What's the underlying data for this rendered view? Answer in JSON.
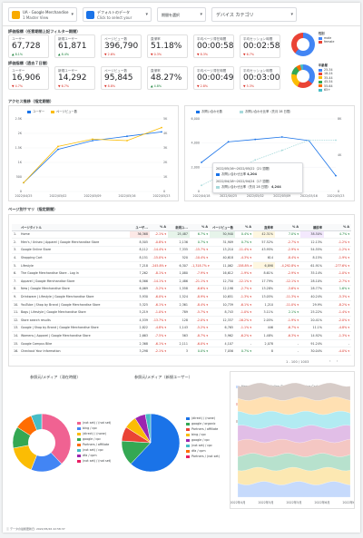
{
  "controls": {
    "account": {
      "line1": "UA - Google Merchandise",
      "line2": "1 Master View"
    },
    "dates": {
      "line1": "デフォルトのデータ",
      "line2": "Click to select your"
    },
    "compare": {
      "label": "期間を選択"
    },
    "device": {
      "label": "デバイス カテゴリ"
    }
  },
  "section1": {
    "title": "評価指標（任意期間上記フィルター期間）"
  },
  "section2": {
    "title": "評価指標（過去７日間）"
  },
  "kpi_row1": [
    {
      "label": "ユーザー",
      "value": "67,728",
      "delta": "▲ 8.1%",
      "up": true
    },
    {
      "label": "新規ユーザー",
      "value": "61,871",
      "delta": "▲ 8.4%",
      "up": true
    },
    {
      "label": "ページビュー数",
      "value": "396,790",
      "delta": "▼ 2.6%",
      "up": false
    },
    {
      "label": "直帰率",
      "value": "51.18%",
      "delta": "▼ 0.3%",
      "up": false
    },
    {
      "label": "平均ページ滞在時間",
      "value": "00:00:58",
      "delta": "▼ 8.3%",
      "up": false
    },
    {
      "label": "平均セッション時間",
      "value": "00:02:58",
      "delta": "▼ 6.7%",
      "up": false
    }
  ],
  "kpi_row2": [
    {
      "label": "ユーザー",
      "value": "16,906",
      "delta": "▼ 4.7%",
      "up": false
    },
    {
      "label": "新規ユーザー",
      "value": "14,292",
      "delta": "▼ 6.7%",
      "up": false
    },
    {
      "label": "ページビュー数",
      "value": "95,845",
      "delta": "▼ 8.8%",
      "up": false
    },
    {
      "label": "直帰率",
      "value": "48.27%",
      "delta": "▲ 4.8%",
      "up": true
    },
    {
      "label": "平均ページ滞在時間",
      "value": "00:00:49",
      "delta": "▼ 2.8%",
      "up": false
    },
    {
      "label": "平均セッション時間",
      "value": "00:03:00",
      "delta": "▼ 5.3%",
      "up": false
    }
  ],
  "donut1": {
    "title": "性別",
    "items": [
      {
        "label": "male",
        "color": "#4285f4"
      },
      {
        "label": "female",
        "color": "#ea4335"
      }
    ]
  },
  "donut2": {
    "title": "年齢層",
    "items": [
      {
        "label": "25-34",
        "color": "#4285f4"
      },
      {
        "label": "18-24",
        "color": "#ea4335"
      },
      {
        "label": "35-44",
        "color": "#fbbc04"
      },
      {
        "label": "45-54",
        "color": "#34a853"
      },
      {
        "label": "55-64",
        "color": "#ff6d01"
      },
      {
        "label": "65+",
        "color": "#46bdc6"
      }
    ]
  },
  "section3": {
    "title": "アクセス推移（指定期間）"
  },
  "section4": {
    "title": "ページ別サマリ（指定期間）"
  },
  "line_chart1": {
    "legend": [
      "ユーザー",
      "ページビュー数"
    ],
    "x": [
      "2022/04/25",
      "2022/05/02",
      "2022/05/09",
      "2022/05/16",
      "2022/05/23"
    ],
    "y_left": [
      "0",
      "500",
      "1K",
      "1.5K",
      "2K",
      "2.5K"
    ],
    "y_right": [
      "0",
      "1K",
      "2K",
      "3K",
      "4K",
      "5K"
    ],
    "series1": [
      300,
      1450,
      1750,
      1900,
      2050
    ],
    "series2": [
      300,
      1550,
      1800,
      1750,
      2200
    ]
  },
  "line_chart2": {
    "legend": [
      "お問い合わせ数",
      "お問い合わせ比率（先月 28 日間）"
    ],
    "x": [
      "2022/04/18",
      "2022/04/25",
      "2022/05/02",
      "2022/05/09",
      "2022/05/16",
      "2022/05/23"
    ],
    "y_left": [
      "0",
      "2,000",
      "4,000",
      "6,000"
    ],
    "y_right": [
      "0",
      "4K",
      "8K"
    ],
    "tip_head1": "2022/05/16〜2022/05/22（21 週間）",
    "tip_row1": {
      "label": "お問い合わせ比率",
      "value": "4,204"
    },
    "tip_head2": "2022/04/18〜2022/04/24（17 週間）",
    "tip_row2": {
      "label": "お問い合わせ比率（先月 28 日間）",
      "value": "4,244"
    }
  },
  "table": {
    "headers": [
      "ページタイトル",
      "ユーザ...",
      "% Δ",
      "新規ユ...",
      "% Δ",
      "ページビュー数",
      "% Δ",
      "直帰率",
      "% Δ",
      "離脱率",
      "% Δ"
    ],
    "rows": [
      [
        "1.",
        "Home",
        "36,368",
        "-2.1% ▾",
        "25,487",
        "6.7% ▾",
        "50,940",
        "0.4% ▾",
        "42.31%",
        "7.0% ▾",
        "38.50%",
        "4.7% ▾"
      ],
      [
        "2.",
        "Men's / Unisex | Apparel | Google Merchandise Store",
        "8,505",
        "-0.8% ▾",
        "2,136",
        "0.7% ▾",
        "31,909",
        "0.7% ▾",
        "57.52%",
        "-2.7% ▾",
        "12.13%",
        "-1.2% ▾"
      ],
      [
        "3.",
        "Google Online Store",
        "8,112",
        "-14.4% ▾",
        "7,335",
        "-15.7% ▾",
        "13,210",
        "-11.4% ▾",
        "43.95%",
        "-2.9% ▾",
        "54.55%",
        "-1.2% ▾"
      ],
      [
        "4.",
        "Shopping Cart",
        "8,151",
        "-15.0% ▾",
        "520",
        "-10.4% ▾",
        "40,618",
        "-4.3% ▾",
        "614",
        "-8.4% ▾",
        "8.15%",
        "-1.9% ▾"
      ],
      [
        "5.",
        "Lifestyle",
        "7,218",
        "-245.8% ▾",
        "6,307",
        "-1,318.7% ▾",
        "11,062",
        "-158.8% ▾",
        "6,898",
        "-4,292.8% ▾",
        "61.91%",
        "-277.6% ▾"
      ],
      [
        "6.",
        "The Google Merchandise Store - Log In",
        "7,262",
        "-8.1% ▾",
        "1,080",
        "-7.9% ▾",
        "16,612",
        "-1.9% ▾",
        "8.61%",
        "-2.9% ▾",
        "35.14%",
        "-1.0% ▾"
      ],
      [
        "7.",
        "Apparel | Google Merchandise Store",
        "6,566",
        "-14.1% ▾",
        "2,486",
        "-21.1% ▾",
        "12,750",
        "-12.1% ▾",
        "17.79%",
        "-12.1% ▾",
        "28.10%",
        "-2.7% ▾"
      ],
      [
        "8.",
        "New | Google Merchandise Store",
        "6,069",
        "-5.2% ▾",
        "1,558",
        "-6.6% ▾",
        "12,198",
        "-2.7% ▾",
        "13.28%",
        "-3.6% ▾",
        "28.77%",
        "1.6% ▾"
      ],
      [
        "9.",
        "Drinkware | Lifestyle | Google Merchandise Store",
        "5,930",
        "-6.0% ▾",
        "1,524",
        "-8.9% ▾",
        "10,651",
        "-1.3% ▾",
        "13.05%",
        "-11.3% ▾",
        "40.24%",
        "-5.3% ▾"
      ],
      [
        "10.",
        "YouTube | Shop by Brand | Google Merchandise Store",
        "5,325",
        "-6.1% ▾",
        "2,361",
        "-8.4% ▾",
        "10,739",
        "-6.1% ▾",
        "1,210",
        "-11.0% ▾",
        "29.9%",
        "-8.2% ▾"
      ],
      [
        "11.",
        "Bags | Lifestyle | Google Merchandise Store",
        "5,219",
        "-1.0% ▾",
        "789",
        "-5.7% ▾",
        "8,743",
        "-1.0% ▾",
        "3.11%",
        "2.1% ▾",
        "25.22%",
        "-1.4% ▾"
      ],
      [
        "12.",
        "Store search results",
        "4,539",
        "-13.7% ▾",
        "128",
        "-2.0% ▾",
        "12,337",
        "-16.2% ▾",
        "2.05%",
        "-1.9% ▾",
        "20.41%",
        "-2.0% ▾"
      ],
      [
        "13.",
        "Google | Shop by Brand | Google Merchandise Store",
        "2,822",
        "-4.8% ▾",
        "1,143",
        "-5.2% ▾",
        "6,765",
        "-1.1% ▾",
        "446",
        "-6.7% ▾",
        "11.1%",
        "-4.8% ▾"
      ],
      [
        "14.",
        "Womens | Apparel | Google Merchandise Store",
        "2,663",
        "-7.5% ▾",
        "563",
        "-8.7% ▾",
        "5,962",
        "-6.2% ▾",
        "1.48%",
        "-6.3% ▾",
        "14.92%",
        "-1.3% ▾"
      ],
      [
        "15.",
        "Google Campus Bike",
        "2,368",
        "-6.1% ▾",
        "2,111",
        "-6.0% ▾",
        "4,107",
        "-",
        "2,078",
        "-",
        "91.24%",
        "-"
      ],
      [
        "16.",
        "Checkout Your Information",
        "3,298",
        "-2.1% ▾",
        "3",
        "0.0% ▾",
        "7,056",
        "0.7% ▾",
        "8",
        "-",
        "30.04%",
        "-4.0% ▾"
      ]
    ],
    "pagination": "1 - 100 / 1003"
  },
  "bottom1": {
    "title": "参照元/メディア（滞在時間）",
    "legend": [
      "(not set) / (not set)",
      "bing / cpc",
      "(direct) / (none)",
      "google / cpc",
      "Partners / affiliate",
      "(not set) / cpc",
      "dfa / cpm",
      "(not set) / (not set)"
    ]
  },
  "bottom2": {
    "title": "参照元/メディア（新規ユーザー）",
    "legend": [
      "(direct) / (none)",
      "google / organic",
      "Partners / affiliate",
      "bing / cpc",
      "google / cpc",
      "(not set) / cpc",
      "dfa / cpm",
      "Partners / (not set)"
    ]
  },
  "area_chart": {
    "legend": [
      "Home",
      "Google Online Store",
      "Shopping Cart",
      "Store search results",
      "(other)",
      "Google merchandise",
      "Lifestyle",
      "Apparel"
    ],
    "x": [
      "2022年4月",
      "2022年5月",
      "2022年5月",
      "2022年6月",
      "2022年6月"
    ]
  },
  "footer": {
    "text": "データの最終更新日: 2022/05/26 22:58:37"
  },
  "chart_data": [
    {
      "type": "line",
      "title": "",
      "x": [
        "2022/04/25",
        "2022/05/02",
        "2022/05/09",
        "2022/05/16",
        "2022/05/23"
      ],
      "series": [
        {
          "name": "ユーザー",
          "values": [
            300,
            1450,
            1750,
            1900,
            2050
          ]
        },
        {
          "name": "ページビュー数",
          "values": [
            300,
            1550,
            1800,
            1750,
            2200
          ]
        }
      ],
      "ylim": [
        0,
        2500
      ]
    },
    {
      "type": "line",
      "title": "",
      "x": [
        "2022/04/18",
        "2022/04/25",
        "2022/05/02",
        "2022/05/09",
        "2022/05/16",
        "2022/05/23"
      ],
      "series": [
        {
          "name": "お問い合わせ数",
          "values": [
            2400,
            4100,
            4300,
            4500,
            4200,
            1300
          ]
        },
        {
          "name": "お問い合わせ比率（先月 28 日間）",
          "values": [
            500,
            1600,
            2600,
            3400,
            4240,
            4240
          ]
        }
      ],
      "ylim": [
        0,
        6000
      ]
    },
    {
      "type": "pie",
      "title": "参照元/メディア（滞在時間）",
      "categories": [
        "(not set) / (not set)",
        "bing / cpc",
        "(direct) / (none)",
        "google / cpc",
        "Partners / affiliate",
        "(not set) / cpc"
      ],
      "values": [
        38,
        18,
        16,
        12,
        10,
        6
      ]
    },
    {
      "type": "pie",
      "title": "参照元/メディア（新規ユーザー）",
      "categories": [
        "(direct) / (none)",
        "google / organic",
        "Partners / affiliate",
        "bing / cpc",
        "google / cpc",
        "(not set) / cpc"
      ],
      "values": [
        62,
        14,
        8,
        7,
        6,
        3
      ]
    }
  ]
}
